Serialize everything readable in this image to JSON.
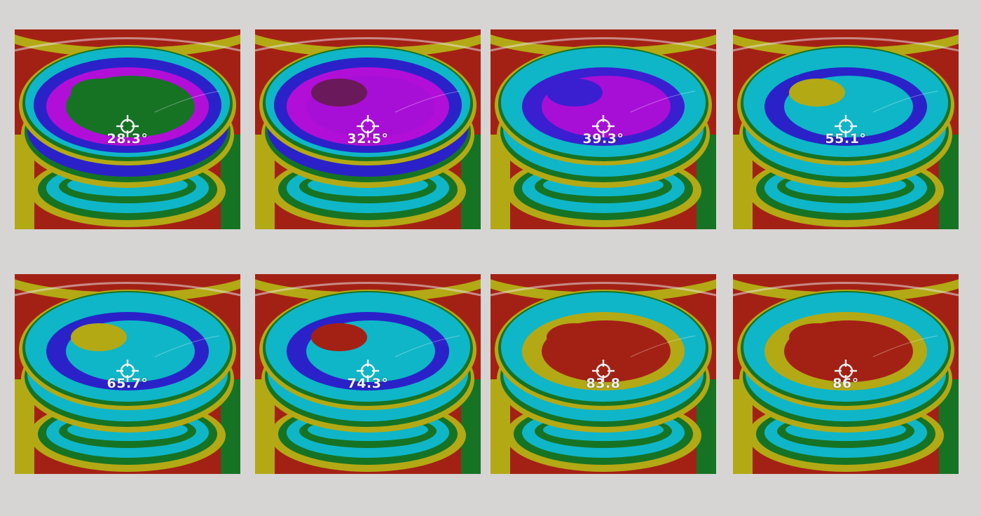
{
  "panels": [
    {
      "reading": "28.3°",
      "inner": "#167324",
      "mid": "#b10fd8",
      "outer": "#2a22c8",
      "spot": "#167324"
    },
    {
      "reading": "32.5°",
      "inner": "#a80fd6",
      "mid": "#b10fd8",
      "outer": "#2a22c8",
      "spot": "#6a1a5a"
    },
    {
      "reading": "39.3°",
      "inner": "#a80fd6",
      "mid": "#3a1fd0",
      "outer": "#0fb6c8",
      "spot": "#3a1fd0"
    },
    {
      "reading": "55.1°",
      "inner": "#0fb6c8",
      "mid": "#2a22c8",
      "outer": "#0fb6c8",
      "spot": "#b3a915"
    },
    {
      "reading": "65.7°",
      "inner": "#0fb6c8",
      "mid": "#2a22c8",
      "outer": "#0fb6c8",
      "spot": "#b3a915"
    },
    {
      "reading": "74.3°",
      "inner": "#0fb6c8",
      "mid": "#2a22c8",
      "outer": "#0fb6c8",
      "spot": "#a32114"
    },
    {
      "reading": "83.8",
      "inner": "#a32114",
      "mid": "#b3a915",
      "outer": "#0fb6c8",
      "spot": "#a32114"
    },
    {
      "reading": "86°",
      "inner": "#a32114",
      "mid": "#b3a915",
      "outer": "#0fb6c8",
      "spot": "#a32114"
    }
  ],
  "palette": {
    "background": "#d6d5d3",
    "red": "#a32114",
    "yellow": "#b3a915",
    "green": "#167324",
    "cyan": "#0fb6c8",
    "blue": "#2a22c8",
    "magenta": "#b10fd8"
  }
}
